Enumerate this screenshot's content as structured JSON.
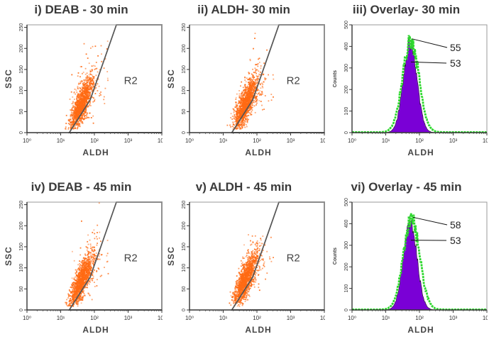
{
  "chart_data": [
    {
      "type": "scatter",
      "title": "i) DEAB - 30 min",
      "xlabel": "ALDH",
      "ylabel": "SSC",
      "x_scale": "log",
      "xlim": [
        1,
        10000
      ],
      "ylim": [
        0,
        256
      ],
      "x_ticks": [
        "10⁰",
        "10¹",
        "10²",
        "10³",
        "10⁴"
      ],
      "y_ticks": [
        "0",
        "50",
        "100",
        "150",
        "200",
        "250"
      ],
      "gate": {
        "label": "R2",
        "vertices": [
          [
            18,
            0
          ],
          [
            1000,
            0
          ],
          [
            10000,
            0
          ],
          [
            10000,
            256
          ],
          [
            450,
            256
          ],
          [
            75,
            78
          ]
        ]
      },
      "cloud": {
        "center_x": 40,
        "center_y": 65,
        "max_x": 300,
        "max_y": 256,
        "color": "#ff6a13"
      }
    },
    {
      "type": "scatter",
      "title": "ii) ALDH- 30 min",
      "xlabel": "ALDH",
      "ylabel": "SSC",
      "x_scale": "log",
      "xlim": [
        1,
        10000
      ],
      "ylim": [
        0,
        256
      ],
      "x_ticks": [
        "10⁰",
        "10¹",
        "10²",
        "10³",
        "10⁴"
      ],
      "y_ticks": [
        "0",
        "50",
        "100",
        "150",
        "200",
        "250"
      ],
      "gate": {
        "label": "R2",
        "vertices": [
          [
            18,
            0
          ],
          [
            1000,
            0
          ],
          [
            10000,
            0
          ],
          [
            10000,
            256
          ],
          [
            450,
            256
          ],
          [
            75,
            78
          ]
        ]
      },
      "cloud": {
        "center_x": 45,
        "center_y": 68,
        "max_x": 320,
        "max_y": 256,
        "color": "#ff6a13"
      }
    },
    {
      "type": "area",
      "title": "iii) Overlay- 30 min",
      "xlabel": "ALDH",
      "ylabel": "Counts",
      "x_scale": "log",
      "xlim": [
        1,
        10000
      ],
      "ylim": [
        0,
        500
      ],
      "x_ticks": [
        "10⁰",
        "10¹",
        "10²",
        "10³",
        "10⁴"
      ],
      "y_ticks": [
        "0",
        "100",
        "200",
        "300",
        "400",
        "500"
      ],
      "series": [
        {
          "color": "#7a00d6",
          "peak_x": 53,
          "peak_y": 420,
          "width": 0.2
        },
        {
          "color": "#2ed82e",
          "peak_x": 55,
          "peak_y": 425,
          "width": 0.24
        }
      ],
      "annotations": [
        "55",
        "53"
      ]
    },
    {
      "type": "scatter",
      "title": "iv) DEAB - 45 min",
      "xlabel": "ALDH",
      "ylabel": "SSC",
      "x_scale": "log",
      "xlim": [
        1,
        10000
      ],
      "ylim": [
        0,
        256
      ],
      "x_ticks": [
        "10⁰",
        "10¹",
        "10²",
        "10³",
        "10⁴"
      ],
      "y_ticks": [
        "0",
        "50",
        "100",
        "150",
        "200",
        "250"
      ],
      "gate": {
        "label": "R2",
        "vertices": [
          [
            18,
            0
          ],
          [
            1000,
            0
          ],
          [
            10000,
            0
          ],
          [
            10000,
            256
          ],
          [
            450,
            256
          ],
          [
            75,
            78
          ]
        ]
      },
      "cloud": {
        "center_x": 40,
        "center_y": 68,
        "max_x": 300,
        "max_y": 256,
        "color": "#ff6a13"
      }
    },
    {
      "type": "scatter",
      "title": "v) ALDH - 45 min",
      "xlabel": "ALDH",
      "ylabel": "SSC",
      "x_scale": "log",
      "xlim": [
        1,
        10000
      ],
      "ylim": [
        0,
        256
      ],
      "x_ticks": [
        "10⁰",
        "10¹",
        "10²",
        "10³",
        "10⁴"
      ],
      "y_ticks": [
        "0",
        "50",
        "100",
        "150",
        "200",
        "250"
      ],
      "gate": {
        "label": "R2",
        "vertices": [
          [
            18,
            0
          ],
          [
            1000,
            0
          ],
          [
            10000,
            0
          ],
          [
            10000,
            256
          ],
          [
            450,
            256
          ],
          [
            75,
            78
          ]
        ]
      },
      "cloud": {
        "center_x": 45,
        "center_y": 70,
        "max_x": 320,
        "max_y": 256,
        "color": "#ff6a13"
      }
    },
    {
      "type": "area",
      "title": "vi) Overlay - 45 min",
      "xlabel": "ALDH",
      "ylabel": "Counts",
      "x_scale": "log",
      "xlim": [
        1,
        10000
      ],
      "ylim": [
        0,
        500
      ],
      "x_ticks": [
        "10⁰",
        "10¹",
        "10²",
        "10³",
        "10⁴"
      ],
      "y_ticks": [
        "0",
        "100",
        "200",
        "300",
        "400",
        "500"
      ],
      "series": [
        {
          "color": "#7a00d6",
          "peak_x": 53,
          "peak_y": 415,
          "width": 0.2
        },
        {
          "color": "#2ed82e",
          "peak_x": 58,
          "peak_y": 420,
          "width": 0.24
        }
      ],
      "annotations": [
        "58",
        "53"
      ]
    }
  ]
}
